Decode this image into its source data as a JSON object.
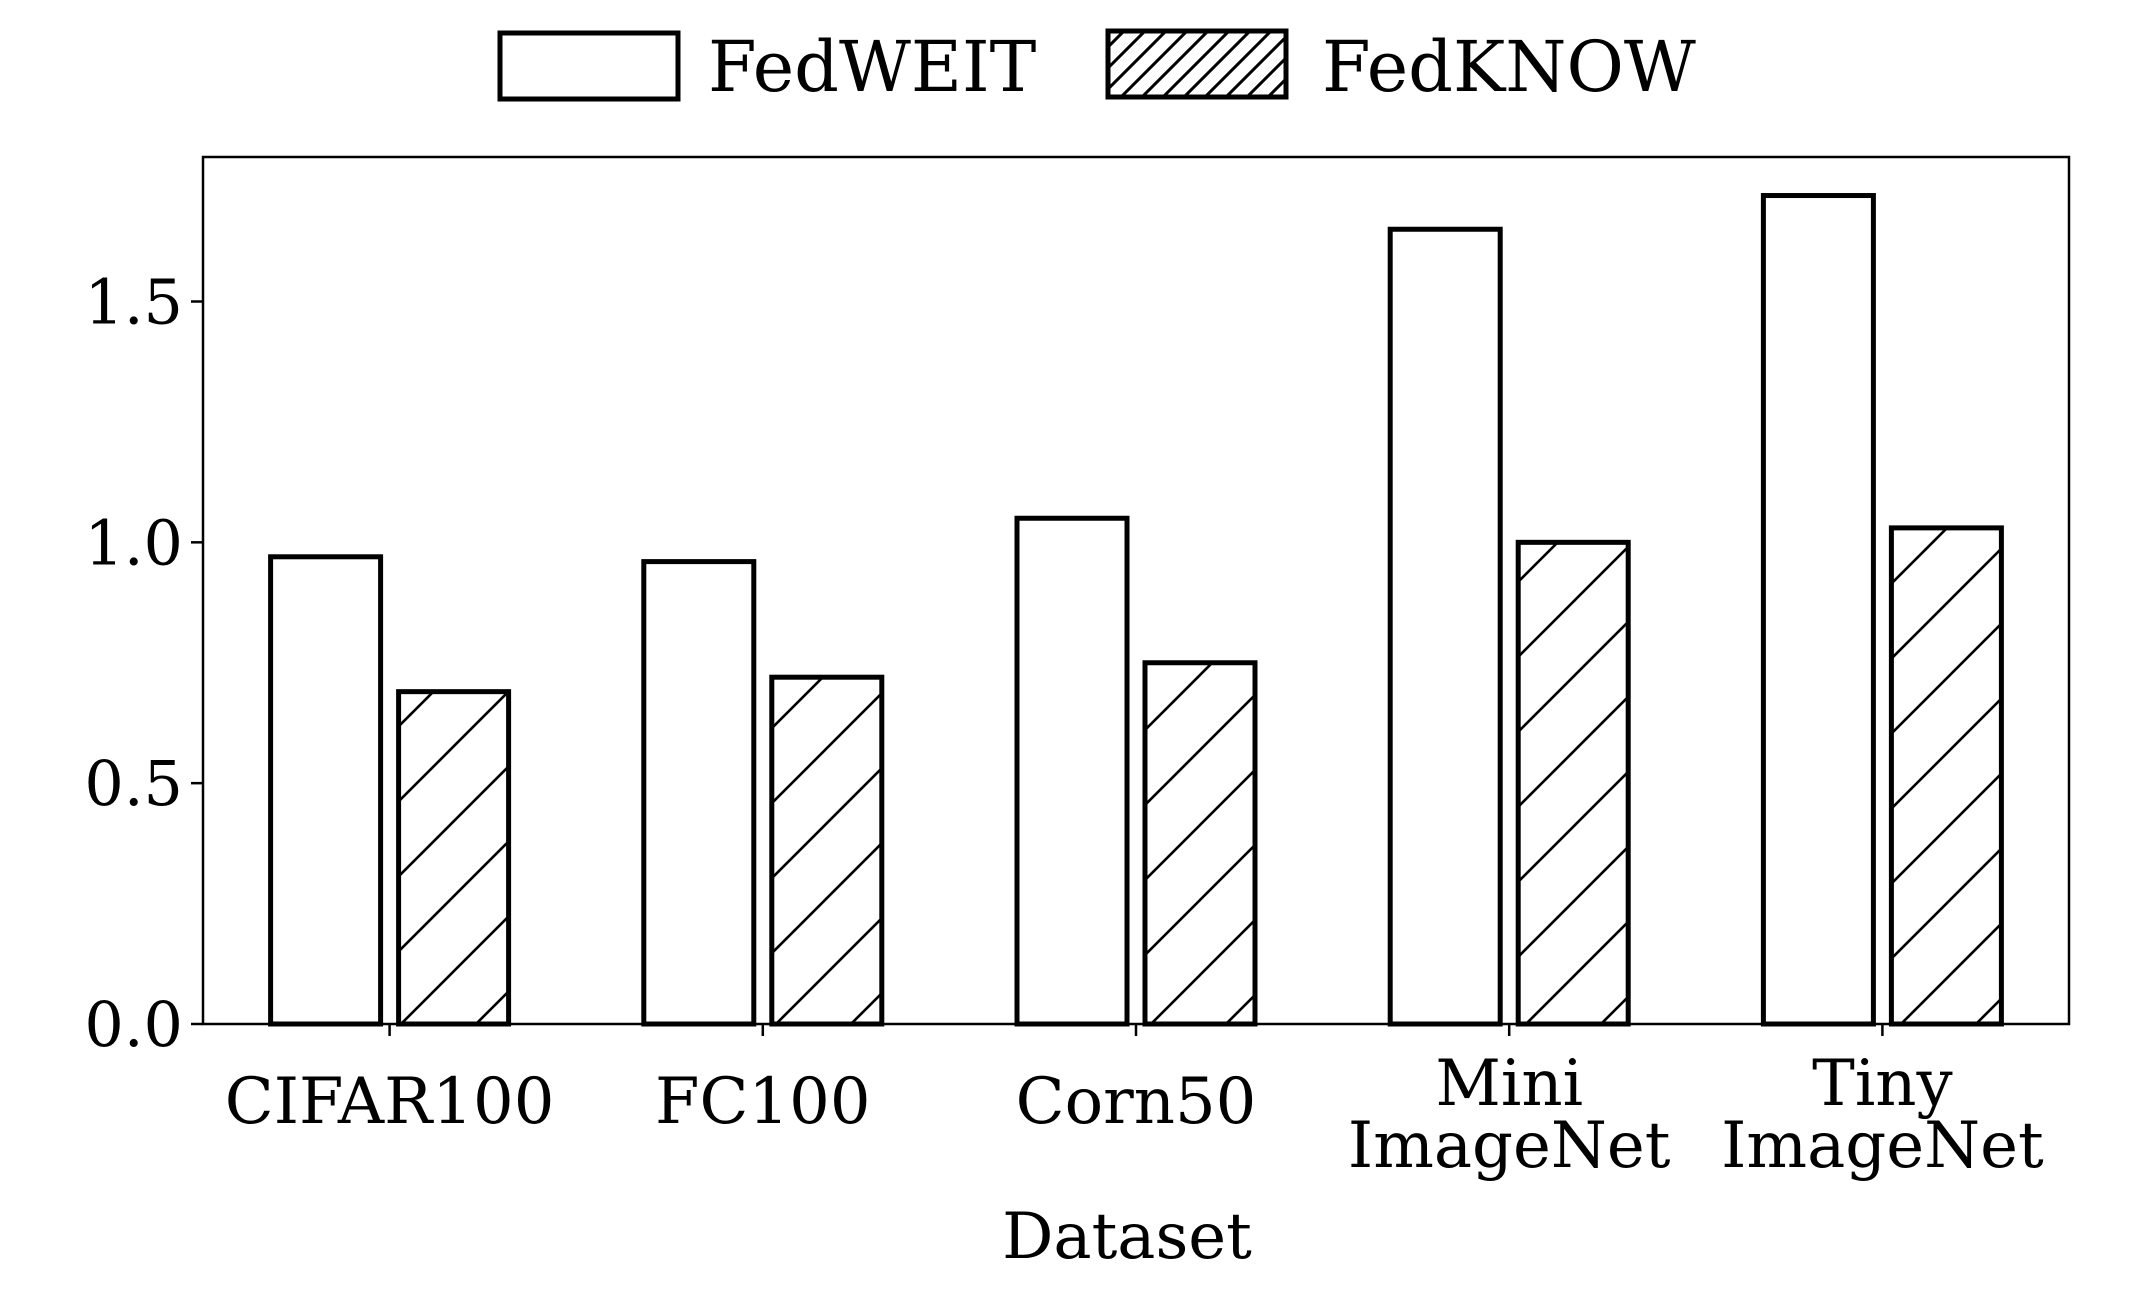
{
  "chart_data": {
    "type": "bar",
    "title": "",
    "xlabel": "Dataset",
    "ylabel": "",
    "categories": [
      [
        "CIFAR100"
      ],
      [
        "FC100"
      ],
      [
        "Corn50"
      ],
      [
        "Mini",
        "ImageNet"
      ],
      [
        "Tiny",
        "ImageNet"
      ]
    ],
    "series": [
      {
        "name": "FedWEIT",
        "pattern": "none",
        "values": [
          0.97,
          0.96,
          1.05,
          1.65,
          1.72
        ]
      },
      {
        "name": "FedKNOW",
        "pattern": "diagonal-hatch",
        "values": [
          0.69,
          0.72,
          0.75,
          1.0,
          1.03
        ]
      }
    ],
    "ylim": [
      0,
      1.8
    ],
    "yticks": [
      "0.0",
      "0.5",
      "1.0",
      "1.5"
    ],
    "grid": false,
    "legend_position": "top-center",
    "colors": {
      "bar_fill": "#ffffff",
      "bar_edge": "#000000",
      "hatch": "#000000"
    }
  }
}
